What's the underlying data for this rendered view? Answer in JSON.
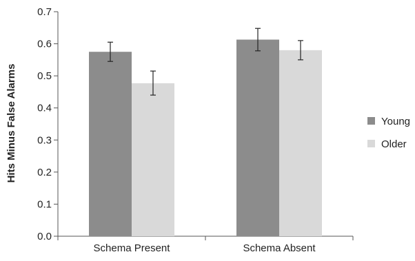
{
  "chart_data": {
    "type": "bar",
    "title": "",
    "xlabel": "",
    "ylabel": "Hits Minus False Alarms",
    "ylim": [
      0,
      0.7
    ],
    "yticks": [
      "0.0",
      "0.1",
      "0.2",
      "0.3",
      "0.4",
      "0.5",
      "0.6",
      "0.7"
    ],
    "grid": false,
    "legend": "right",
    "categories": [
      "Schema Present",
      "Schema Absent"
    ],
    "series": [
      {
        "name": "Young",
        "color": "#8c8c8c",
        "values": [
          0.575,
          0.613
        ],
        "error": [
          [
            0.545,
            0.605
          ],
          [
            0.578,
            0.648
          ]
        ]
      },
      {
        "name": "Older",
        "color": "#d9d9d9",
        "values": [
          0.477,
          0.58
        ],
        "error": [
          [
            0.44,
            0.515
          ],
          [
            0.55,
            0.61
          ]
        ]
      }
    ]
  }
}
